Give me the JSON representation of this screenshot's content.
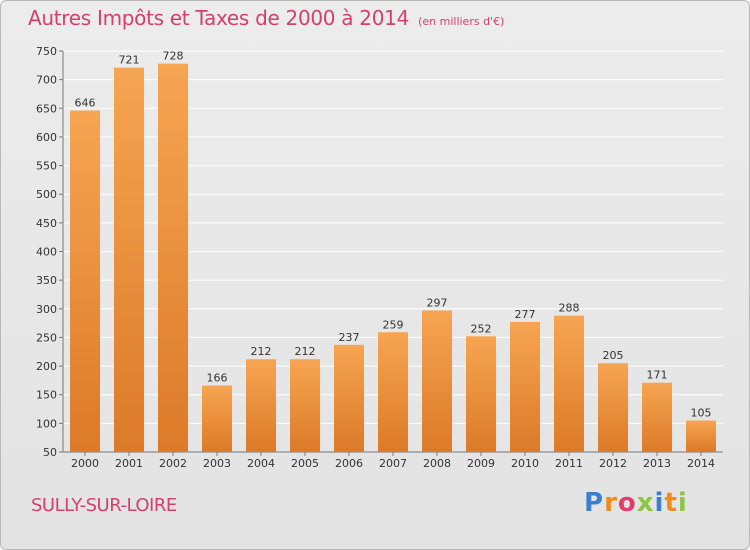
{
  "header": {
    "title": "Autres Impôts et Taxes de 2000 à 2014",
    "unit": "(en milliers d'€)"
  },
  "footer": {
    "place": "SULLY-SUR-LOIRE",
    "logo": "Proxiti"
  },
  "colors": {
    "title": "#d4406b",
    "bar_light": "#f6a552",
    "bar_dark": "#dc7a28",
    "grid": "#ffffff"
  },
  "chart_data": {
    "type": "bar",
    "categories": [
      "2000",
      "2001",
      "2002",
      "2003",
      "2004",
      "2005",
      "2006",
      "2007",
      "2008",
      "2009",
      "2010",
      "2011",
      "2012",
      "2013",
      "2014"
    ],
    "values": [
      646,
      721,
      728,
      166,
      212,
      212,
      237,
      259,
      297,
      252,
      277,
      288,
      205,
      171,
      105
    ],
    "ylim": [
      50,
      750
    ],
    "yticks": [
      50,
      100,
      150,
      200,
      250,
      300,
      350,
      400,
      450,
      500,
      550,
      600,
      650,
      700,
      750
    ],
    "grid": true,
    "legend": "none"
  }
}
